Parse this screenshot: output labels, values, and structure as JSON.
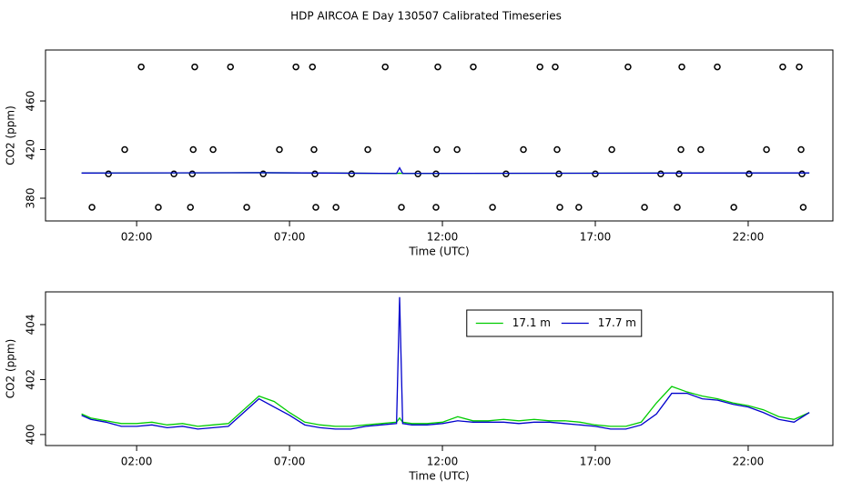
{
  "chart_data": [
    {
      "type": "scatter",
      "title": "HDP AIRCOA E  Day 130507  Calibrated Timeseries",
      "xlabel": "Time (UTC)",
      "ylabel": "CO2 (ppm)",
      "xlim": [
        -0.98,
        24.77
      ],
      "ylim": [
        361.3,
        501.9
      ],
      "xticks": [
        {
          "value": 2,
          "label": "02:00"
        },
        {
          "value": 7,
          "label": "07:00"
        },
        {
          "value": 12,
          "label": "12:00"
        },
        {
          "value": 17,
          "label": "17:00"
        },
        {
          "value": 22,
          "label": "22:00"
        }
      ],
      "yticks": [
        380,
        420,
        460
      ],
      "series": [
        {
          "color": "#000000",
          "x": [
            2.15,
            3.9,
            5.07,
            7.21,
            7.75,
            10.13,
            11.85,
            13.01,
            15.19,
            15.69,
            18.07,
            19.83,
            20.99,
            23.13,
            23.67,
            1.61,
            3.85,
            4.5,
            6.67,
            7.8,
            9.56,
            11.82,
            12.48,
            14.65,
            15.75,
            17.54,
            19.8,
            20.45,
            22.6,
            23.73,
            1.08,
            3.22,
            3.82,
            6.14,
            7.83,
            9.03,
            11.2,
            11.79,
            14.08,
            15.81,
            17.0,
            19.14,
            19.74,
            22.03,
            23.76,
            0.54,
            2.71,
            3.76,
            5.6,
            7.86,
            8.52,
            10.66,
            11.79,
            13.64,
            15.84,
            16.46,
            18.61,
            19.68,
            21.53,
            23.8
          ],
          "values": [
            488,
            488,
            488,
            488,
            488,
            488,
            488,
            488,
            488,
            488,
            488,
            488,
            488,
            488,
            488,
            420,
            420,
            420,
            420,
            420,
            420,
            420,
            420,
            420,
            420,
            420,
            420,
            420,
            420,
            420,
            400,
            400,
            400,
            400,
            400,
            400,
            400,
            400,
            400,
            400,
            400,
            400,
            400,
            400,
            400,
            372.5,
            372.5,
            372.5,
            372.5,
            372.5,
            372.5,
            372.5,
            372.5,
            372.5,
            372.5,
            372.5,
            372.5,
            372.5,
            372.5,
            372.5
          ]
        },
        {
          "type": "line",
          "color": "#00cc00",
          "x": [
            0.2,
            6,
            10.5,
            10.6,
            10.7,
            24
          ],
          "values": [
            400.7,
            401,
            400.4,
            400.6,
            400.4,
            400.8
          ]
        },
        {
          "type": "line",
          "color": "#0000cc",
          "x": [
            0.2,
            6,
            10.5,
            10.6,
            10.7,
            24
          ],
          "values": [
            400.7,
            401,
            400.4,
            405,
            400.4,
            400.8
          ]
        }
      ]
    },
    {
      "type": "line",
      "xlabel": "Time (UTC)",
      "ylabel": "CO2 (ppm)",
      "xlim": [
        -0.98,
        24.77
      ],
      "ylim": [
        399.6,
        405.19
      ],
      "xticks": [
        {
          "value": 2,
          "label": "02:00"
        },
        {
          "value": 7,
          "label": "07:00"
        },
        {
          "value": 12,
          "label": "12:00"
        },
        {
          "value": 17,
          "label": "17:00"
        },
        {
          "value": 22,
          "label": "22:00"
        }
      ],
      "yticks": [
        400,
        402,
        404
      ],
      "legend": "top",
      "x": [
        0.2,
        0.5,
        1,
        1.5,
        2,
        2.5,
        3,
        3.5,
        4,
        4.5,
        5,
        5.5,
        6,
        6.5,
        7,
        7.5,
        8,
        8.5,
        9,
        9.5,
        10,
        10.5,
        10.6,
        10.7,
        11,
        11.5,
        12,
        12.5,
        13,
        13.5,
        14,
        14.5,
        15,
        15.5,
        16,
        16.5,
        17,
        17.5,
        18,
        18.5,
        19,
        19.5,
        20,
        20.5,
        21,
        21.5,
        22,
        22.5,
        23,
        23.5,
        24
      ],
      "series": [
        {
          "name": "17.1 m",
          "color": "#00cc00",
          "values": [
            400.75,
            400.6,
            400.5,
            400.4,
            400.4,
            400.45,
            400.35,
            400.4,
            400.3,
            400.35,
            400.4,
            400.9,
            401.4,
            401.2,
            400.8,
            400.45,
            400.35,
            400.3,
            400.3,
            400.35,
            400.4,
            400.45,
            400.6,
            400.45,
            400.4,
            400.4,
            400.45,
            400.65,
            400.5,
            400.5,
            400.55,
            400.5,
            400.55,
            400.5,
            400.5,
            400.45,
            400.35,
            400.3,
            400.3,
            400.45,
            401.15,
            401.75,
            401.55,
            401.4,
            401.3,
            401.15,
            401.05,
            400.9,
            400.65,
            400.55,
            400.8
          ]
        },
        {
          "name": "17.7 m",
          "color": "#0000cc",
          "values": [
            400.7,
            400.55,
            400.45,
            400.3,
            400.3,
            400.35,
            400.25,
            400.3,
            400.2,
            400.25,
            400.3,
            400.8,
            401.3,
            401.0,
            400.7,
            400.35,
            400.25,
            400.2,
            400.2,
            400.3,
            400.35,
            400.4,
            405.0,
            400.4,
            400.35,
            400.35,
            400.4,
            400.5,
            400.45,
            400.45,
            400.45,
            400.4,
            400.45,
            400.45,
            400.4,
            400.35,
            400.3,
            400.2,
            400.2,
            400.35,
            400.75,
            401.5,
            401.5,
            401.3,
            401.25,
            401.1,
            401.0,
            400.8,
            400.55,
            400.45,
            400.8
          ]
        }
      ]
    }
  ]
}
